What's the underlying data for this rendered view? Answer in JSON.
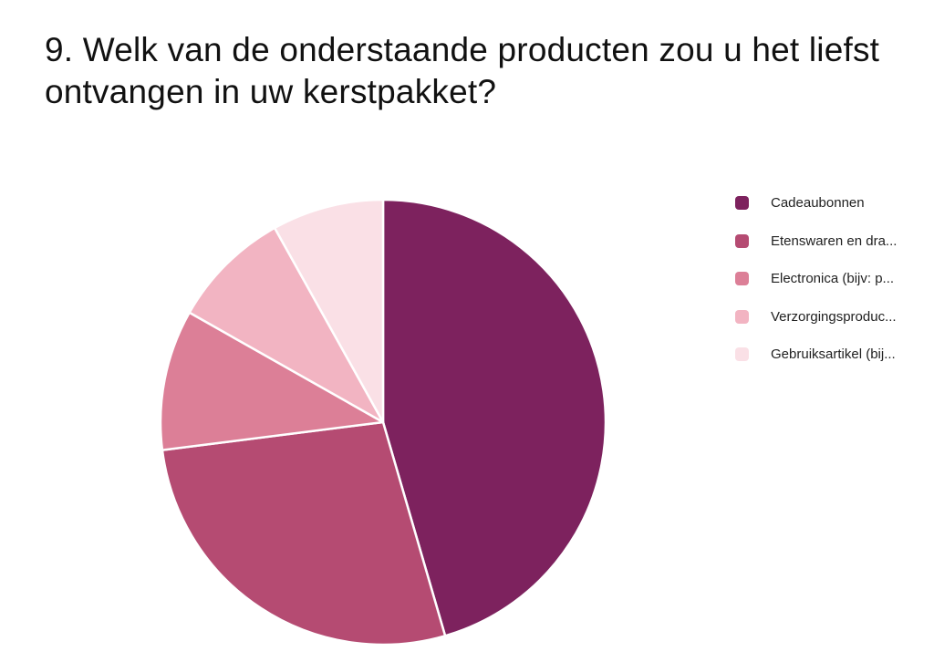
{
  "title": "9. Welk van de onderstaande producten zou u het liefst ontvangen in uw kerstpakket?",
  "chart_data": {
    "type": "pie",
    "title": "9. Welk van de onderstaande producten zou u het liefst ontvangen in uw kerstpakket?",
    "categories": [
      "Cadeaubonnen",
      "Etenswaren en dra...",
      "Electronica (bijv: p...",
      "Verzorgingsproduc...",
      "Gebruiksartikel (bij..."
    ],
    "values": [
      45.5,
      27.5,
      10.2,
      8.7,
      8.1
    ],
    "unit": "percent (estimated from slice angles)",
    "colors": [
      "#7d225e",
      "#b54b72",
      "#dc7f97",
      "#f2b4c2",
      "#fae0e6"
    ],
    "start_angle": "12 o'clock, clockwise",
    "legend_position": "right",
    "data_labels": false
  },
  "legend": {
    "items": [
      {
        "label": "Cadeaubonnen",
        "color": "#7d225e"
      },
      {
        "label": "Etenswaren en dra...",
        "color": "#b54b72"
      },
      {
        "label": "Electronica (bijv: p...",
        "color": "#dc7f97"
      },
      {
        "label": "Verzorgingsproduc...",
        "color": "#f2b4c2"
      },
      {
        "label": "Gebruiksartikel (bij...",
        "color": "#fae0e6"
      }
    ]
  }
}
